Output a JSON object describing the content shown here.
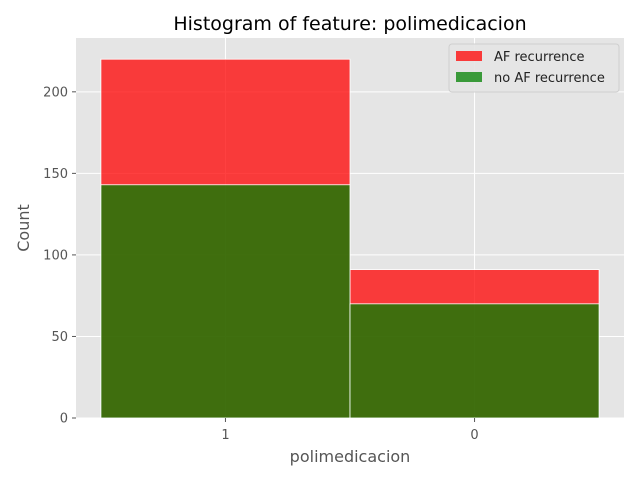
{
  "chart_data": {
    "type": "bar",
    "title": "Histogram of feature: polimedicacion",
    "xlabel": "polimedicacion",
    "ylabel": "Count",
    "categories": [
      "1",
      "0"
    ],
    "series": [
      {
        "name": "AF recurrence",
        "values": [
          220,
          91
        ],
        "color": "#ff0000",
        "opacity": 0.75
      },
      {
        "name": "no AF recurrence",
        "values": [
          143,
          70
        ],
        "color": "#008000",
        "opacity": 0.75
      }
    ],
    "ylim": [
      0,
      233
    ],
    "yticks": [
      0,
      50,
      100,
      150,
      200
    ],
    "grid": true,
    "legend_position": "top-right",
    "background": "#e5e5e5"
  }
}
